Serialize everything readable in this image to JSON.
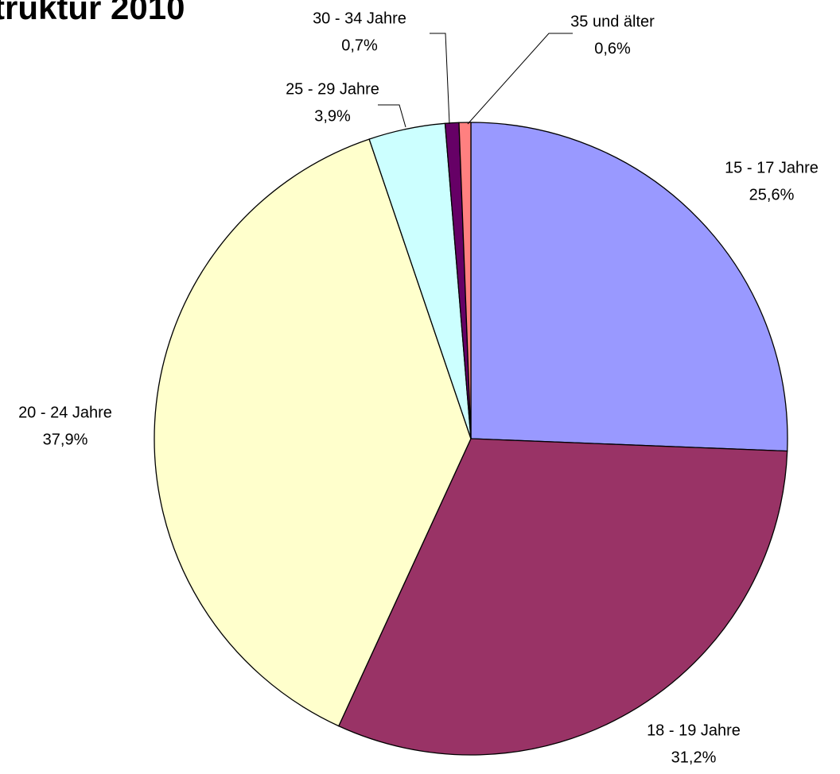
{
  "chart_data": {
    "type": "pie",
    "title": "truktur 2010",
    "categories": [
      "15 - 17 Jahre",
      "18 - 19 Jahre",
      "20 - 24 Jahre",
      "25 - 29 Jahre",
      "30 - 34 Jahre",
      "35 und älter"
    ],
    "values": [
      25.6,
      31.2,
      37.9,
      3.9,
      0.7,
      0.6
    ],
    "value_labels": [
      "25,6%",
      "31,2%",
      "37,9%",
      "3,9%",
      "0,7%",
      "0,6%"
    ],
    "colors": [
      "#9999ff",
      "#993366",
      "#ffffcc",
      "#ccffff",
      "#660066",
      "#ff8080"
    ]
  }
}
